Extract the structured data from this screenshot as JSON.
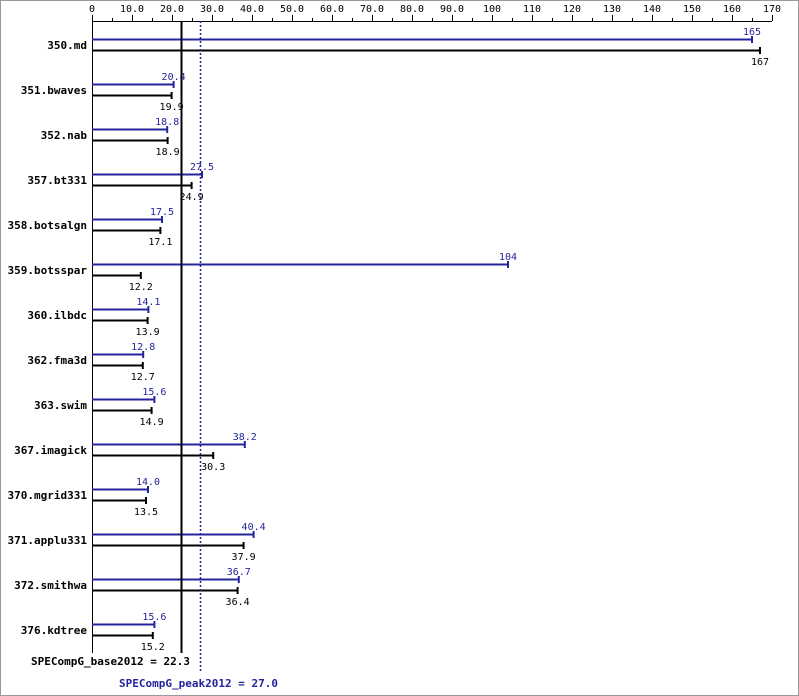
{
  "chart_data": {
    "type": "bar",
    "orientation": "horizontal",
    "title": "",
    "xlabel": "",
    "ylabel": "",
    "xlim": [
      0,
      170
    ],
    "grid": false,
    "ticks": [
      "0",
      "10.0",
      "20.0",
      "30.0",
      "40.0",
      "50.0",
      "60.0",
      "70.0",
      "80.0",
      "90.0",
      "100",
      "110",
      "120",
      "130",
      "140",
      "150",
      "160",
      "170"
    ],
    "categories": [
      "350.md",
      "351.bwaves",
      "352.nab",
      "357.bt331",
      "358.botsalgn",
      "359.botsspar",
      "360.ilbdc",
      "362.fma3d",
      "363.swim",
      "367.imagick",
      "370.mgrid331",
      "371.applu331",
      "372.smithwa",
      "376.kdtree"
    ],
    "series": [
      {
        "key": "peak",
        "color": "#24249c",
        "values": [
          165,
          20.4,
          18.8,
          27.5,
          17.5,
          104,
          14.1,
          12.8,
          15.6,
          38.2,
          14.0,
          40.4,
          36.7,
          15.6
        ],
        "labels": [
          "165",
          "20.4",
          "18.8",
          "27.5",
          "17.5",
          "104",
          "14.1",
          "12.8",
          "15.6",
          "38.2",
          "14.0",
          "40.4",
          "36.7",
          "15.6"
        ]
      },
      {
        "key": "base",
        "color": "#000000",
        "values": [
          167,
          19.9,
          18.9,
          24.9,
          17.1,
          12.2,
          13.9,
          12.7,
          14.9,
          30.3,
          13.5,
          37.9,
          36.4,
          15.2
        ],
        "labels": [
          "167",
          "19.9",
          "18.9",
          "24.9",
          "17.1",
          "12.2",
          "13.9",
          "12.7",
          "14.9",
          "30.3",
          "13.5",
          "37.9",
          "36.4",
          "15.2"
        ]
      }
    ],
    "reference_lines": [
      {
        "key": "base",
        "value": 22.3,
        "label": "SPECompG_base2012 = 22.3",
        "color": "#000000",
        "style": "solid"
      },
      {
        "key": "peak",
        "value": 27.0,
        "label": "SPECompG_peak2012 = 27.0",
        "color": "#24249c",
        "style": "dotted"
      }
    ]
  }
}
